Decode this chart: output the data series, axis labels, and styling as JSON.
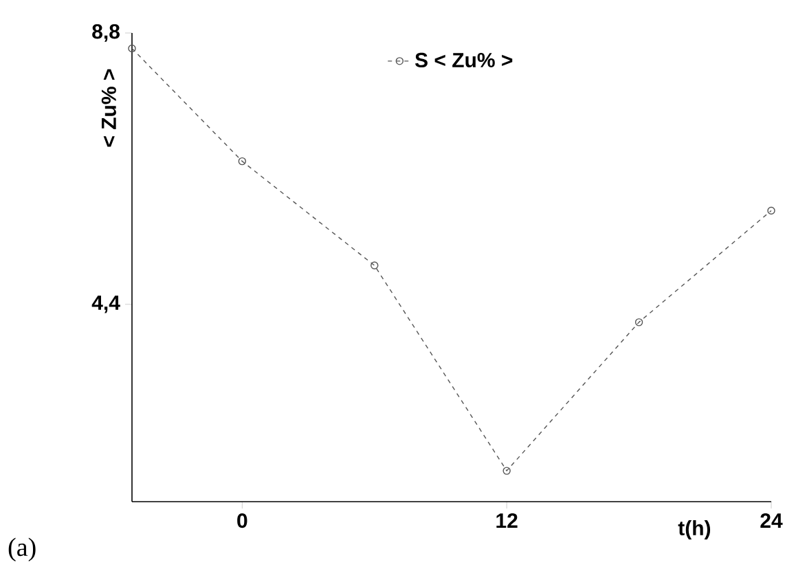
{
  "chart_data": {
    "type": "line",
    "xlabel": "t(h)",
    "ylabel": "< Zu% >",
    "annotations": [
      "(a)"
    ],
    "x": [
      -5,
      0,
      6,
      12,
      18,
      24
    ],
    "series": [
      {
        "name": "S < Zu% >",
        "color": "#555555",
        "values": [
          8.55,
          6.72,
          5.03,
          1.7,
          4.11,
          5.92
        ]
      }
    ],
    "xlim": [
      -5,
      24
    ],
    "xticks": [
      0,
      12,
      24
    ],
    "ylim": [
      1.2,
      8.8
    ],
    "yticks": [
      {
        "value": 4.4,
        "label": "4,4"
      },
      {
        "value": 8.8,
        "label": "8,8"
      }
    ],
    "marker": "circle",
    "line_style": "dashed",
    "legend": "top",
    "grid": false
  }
}
